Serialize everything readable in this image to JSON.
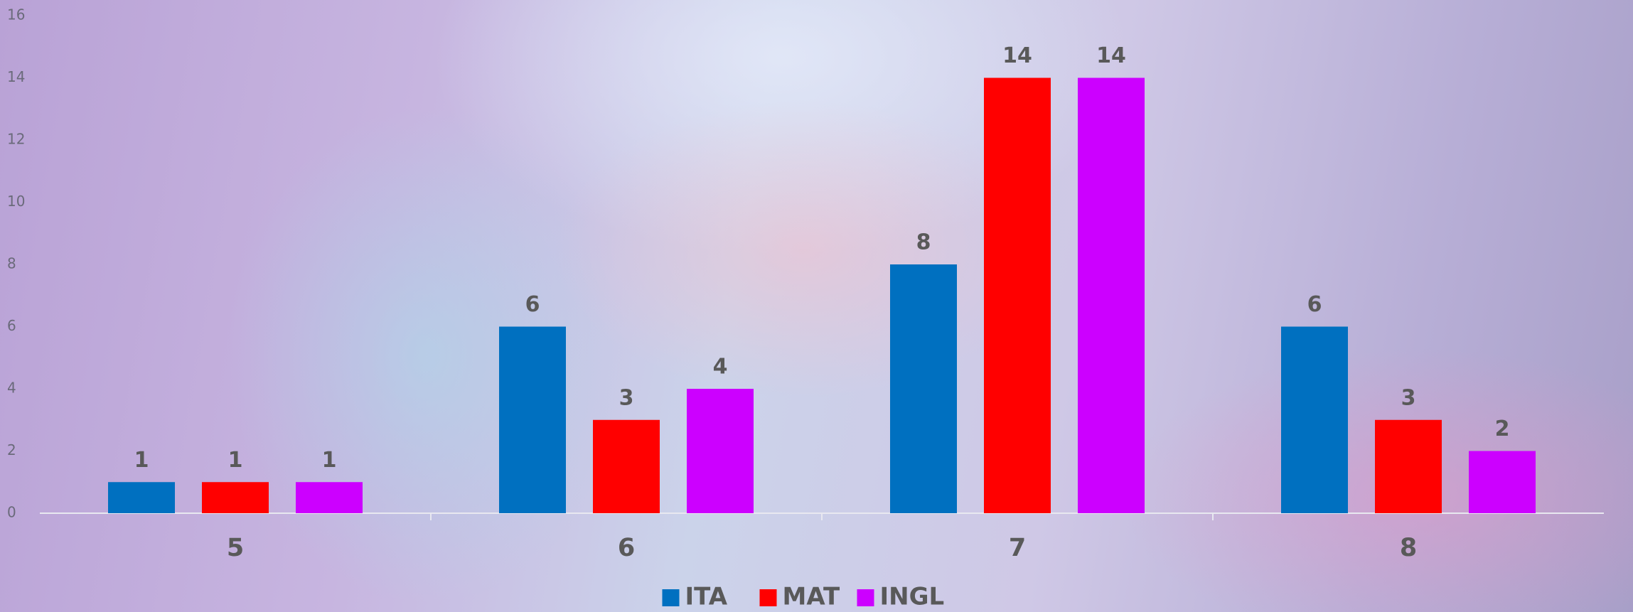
{
  "chart_data": {
    "type": "bar",
    "categories": [
      "5",
      "6",
      "7",
      "8"
    ],
    "series": [
      {
        "name": "ITA",
        "color": "#0070c0",
        "values": [
          1,
          6,
          8,
          6
        ]
      },
      {
        "name": "MAT",
        "color": "#ff0000",
        "values": [
          1,
          3,
          14,
          3
        ]
      },
      {
        "name": "INGL",
        "color": "#cc00ff",
        "values": [
          1,
          4,
          14,
          2
        ]
      }
    ],
    "ylim": [
      0,
      16
    ],
    "yticks": [
      0,
      2,
      4,
      6,
      8,
      10,
      12,
      14,
      16
    ],
    "grid": false,
    "legend": "bottom"
  }
}
